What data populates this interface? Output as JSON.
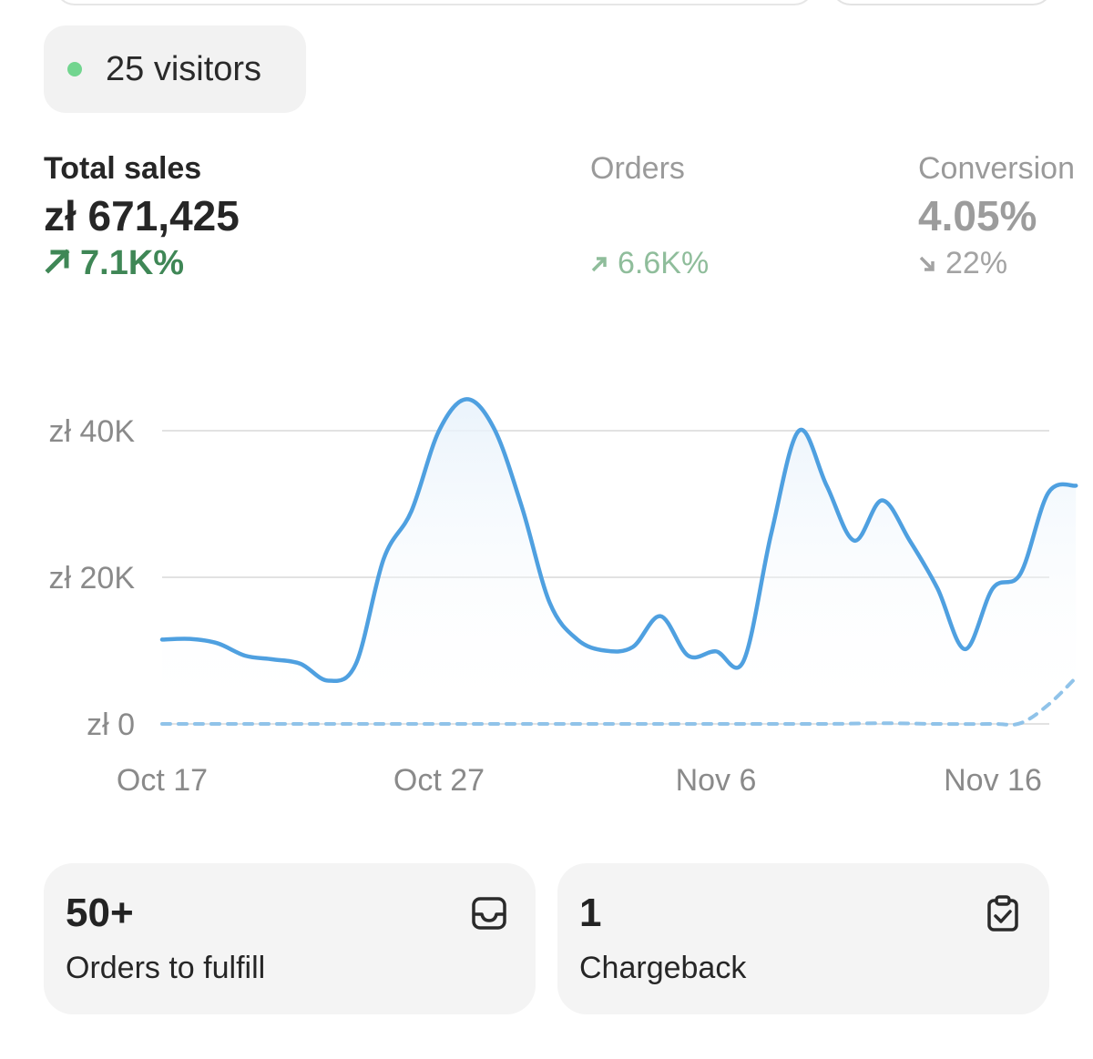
{
  "live_visitors": {
    "text": "25 visitors",
    "status_color": "#72d58f"
  },
  "metrics": {
    "total_sales": {
      "label": "Total sales",
      "value": "zł 671,425",
      "change": "7.1K%",
      "direction": "up",
      "color": "#3f8756"
    },
    "orders": {
      "label": "Orders",
      "value": "",
      "change": "6.6K%",
      "direction": "up"
    },
    "conversion": {
      "label": "Conversion",
      "value": "4.05%",
      "change": "22%",
      "direction": "down"
    }
  },
  "chart_data": {
    "type": "line",
    "title": "",
    "xlabel": "",
    "ylabel": "",
    "x_ticks": [
      "Oct 17",
      "Oct 27",
      "Nov 6",
      "Nov 16"
    ],
    "y_ticks": [
      "zł 0",
      "zł 20K",
      "zł 40K"
    ],
    "ylim": [
      0,
      45000
    ],
    "grid": true,
    "series": [
      {
        "style": "solid",
        "color": "#4fa0e0",
        "values": [
          [
            "Oct 17",
            11500
          ],
          [
            "Oct 18",
            11600
          ],
          [
            "Oct 19",
            11000
          ],
          [
            "Oct 20",
            9300
          ],
          [
            "Oct 21",
            8800
          ],
          [
            "Oct 22",
            8200
          ],
          [
            "Oct 23",
            5900
          ],
          [
            "Oct 24",
            8200
          ],
          [
            "Oct 25",
            22500
          ],
          [
            "Oct 26",
            29000
          ],
          [
            "Oct 27",
            40000
          ],
          [
            "Oct 28",
            44300
          ],
          [
            "Oct 29",
            40200
          ],
          [
            "Oct 30",
            29500
          ],
          [
            "Oct 31",
            16500
          ],
          [
            "Nov 1",
            11500
          ],
          [
            "Nov 2",
            10000
          ],
          [
            "Nov 3",
            10500
          ],
          [
            "Nov 4",
            14700
          ],
          [
            "Nov 5",
            9300
          ],
          [
            "Nov 6",
            9900
          ],
          [
            "Nov 7",
            8600
          ],
          [
            "Nov 8",
            26000
          ],
          [
            "Nov 9",
            40000
          ],
          [
            "Nov 10",
            32500
          ],
          [
            "Nov 11",
            25000
          ],
          [
            "Nov 12",
            30500
          ],
          [
            "Nov 13",
            25000
          ],
          [
            "Nov 14",
            18500
          ],
          [
            "Nov 15",
            10200
          ],
          [
            "Nov 16",
            18500
          ],
          [
            "Nov 17",
            20500
          ],
          [
            "Nov 18",
            31500
          ],
          [
            "Nov 19",
            32500
          ]
        ]
      },
      {
        "style": "dotted",
        "color": "#90c3e9",
        "values": [
          [
            "Oct 17",
            0
          ],
          [
            "Oct 20",
            0
          ],
          [
            "Oct 23",
            0
          ],
          [
            "Oct 26",
            0
          ],
          [
            "Oct 29",
            0
          ],
          [
            "Nov 1",
            0
          ],
          [
            "Nov 4",
            0
          ],
          [
            "Nov 7",
            0
          ],
          [
            "Nov 10",
            0
          ],
          [
            "Nov 12",
            100
          ],
          [
            "Nov 14",
            0
          ],
          [
            "Nov 16",
            0
          ],
          [
            "Nov 17",
            100
          ],
          [
            "Nov 18",
            2600
          ],
          [
            "Nov 19",
            6300
          ]
        ]
      }
    ]
  },
  "cards": {
    "fulfill": {
      "number": "50+",
      "label": "Orders to fulfill",
      "icon": "inbox-icon"
    },
    "chargeback": {
      "number": "1",
      "label": "Chargeback",
      "icon": "clipboard-check-icon"
    }
  }
}
